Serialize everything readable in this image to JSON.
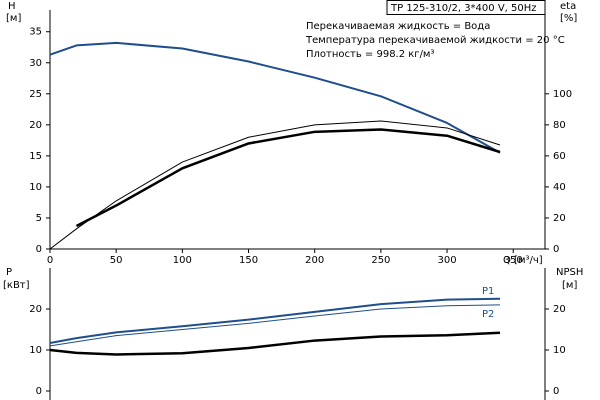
{
  "chart_data": [
    {
      "type": "line",
      "title": "TP 125-310/2, 3*400 V, 50Hz",
      "annotations": [
        "Перекачиваемая жидкость = Вода",
        "Температура перекачиваемой жидкости = 20 °C",
        "Плотность = 998.2 кг/м³"
      ],
      "ylabel": "H",
      "yunit": "[м]",
      "y2label": "eta",
      "y2unit": "[%]",
      "xlabel": "Q [м³/ч]",
      "x": [
        0,
        20,
        50,
        100,
        150,
        200,
        250,
        300,
        340
      ],
      "xlim": [
        0,
        374
      ],
      "xticks": [
        0,
        50,
        100,
        150,
        200,
        250,
        300,
        350
      ],
      "ylim": [
        0,
        38.5
      ],
      "yticks": [
        0,
        5,
        10,
        15,
        20,
        25,
        30,
        35
      ],
      "y2lim": [
        0,
        154
      ],
      "y2ticks": [
        0,
        20,
        40,
        60,
        80,
        100
      ],
      "series": [
        {
          "color": "#1f4e8c",
          "width": 2,
          "values": [
            31.3,
            32.8,
            33.2,
            32.3,
            30.2,
            27.6,
            24.6,
            20.3,
            15.5
          ]
        },
        {
          "color": "#000000",
          "width": 1,
          "axis": "y2",
          "values": [
            0,
            13,
            31,
            56,
            72,
            80,
            82.5,
            78,
            67
          ]
        },
        {
          "color": "#000000",
          "width": 2.5,
          "axis": "y2",
          "values": [
            null,
            14.8,
            28,
            52,
            68,
            75.5,
            77,
            73,
            62.5
          ]
        }
      ]
    },
    {
      "type": "line",
      "ylabel": "P",
      "yunit": "[кВт]",
      "y2label": "NPSH",
      "y2unit": "[м]",
      "x": [
        0,
        20,
        50,
        100,
        150,
        200,
        250,
        300,
        340
      ],
      "xlim": [
        0,
        374
      ],
      "ylim": [
        0,
        30
      ],
      "yticks": [
        0,
        10,
        20
      ],
      "y2lim": [
        0,
        30
      ],
      "y2ticks": [
        0,
        10,
        20
      ],
      "series": [
        {
          "name": "P1",
          "color": "#1f4e8c",
          "width": 2,
          "values": [
            11.7,
            12.9,
            14.3,
            15.8,
            17.4,
            19.3,
            21.2,
            22.3,
            22.5
          ]
        },
        {
          "name": "P2",
          "color": "#1f4e8c",
          "width": 1,
          "values": [
            11.0,
            12.0,
            13.5,
            15.0,
            16.5,
            18.3,
            20.0,
            20.8,
            21.0
          ]
        },
        {
          "color": "#000000",
          "width": 2.5,
          "axis": "y2",
          "values": [
            10,
            9.3,
            8.9,
            9.2,
            10.5,
            12.3,
            13.3,
            13.6,
            14.2
          ]
        }
      ]
    }
  ]
}
